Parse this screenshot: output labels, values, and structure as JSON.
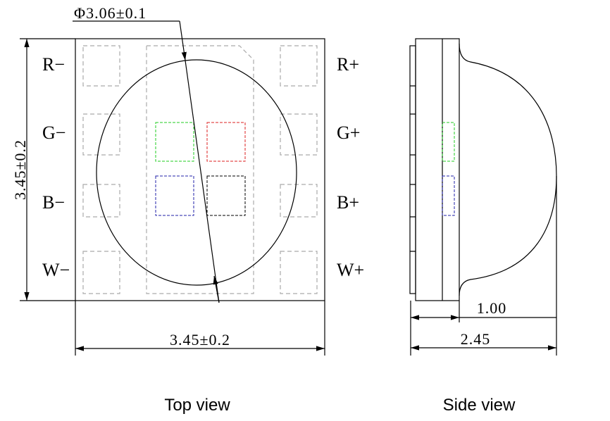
{
  "top_view": {
    "diameter_label": "Φ3.06±0.1",
    "height_label": "3.45±0.2",
    "width_label": "3.45±0.2",
    "left_pins": [
      "R−",
      "G−",
      "B−",
      "W−"
    ],
    "right_pins": [
      "R+",
      "G+",
      "B+",
      "W+"
    ],
    "caption": "Top view"
  },
  "side_view": {
    "inner_dim": "1.00",
    "total_dim": "2.45",
    "caption": "Side view"
  }
}
